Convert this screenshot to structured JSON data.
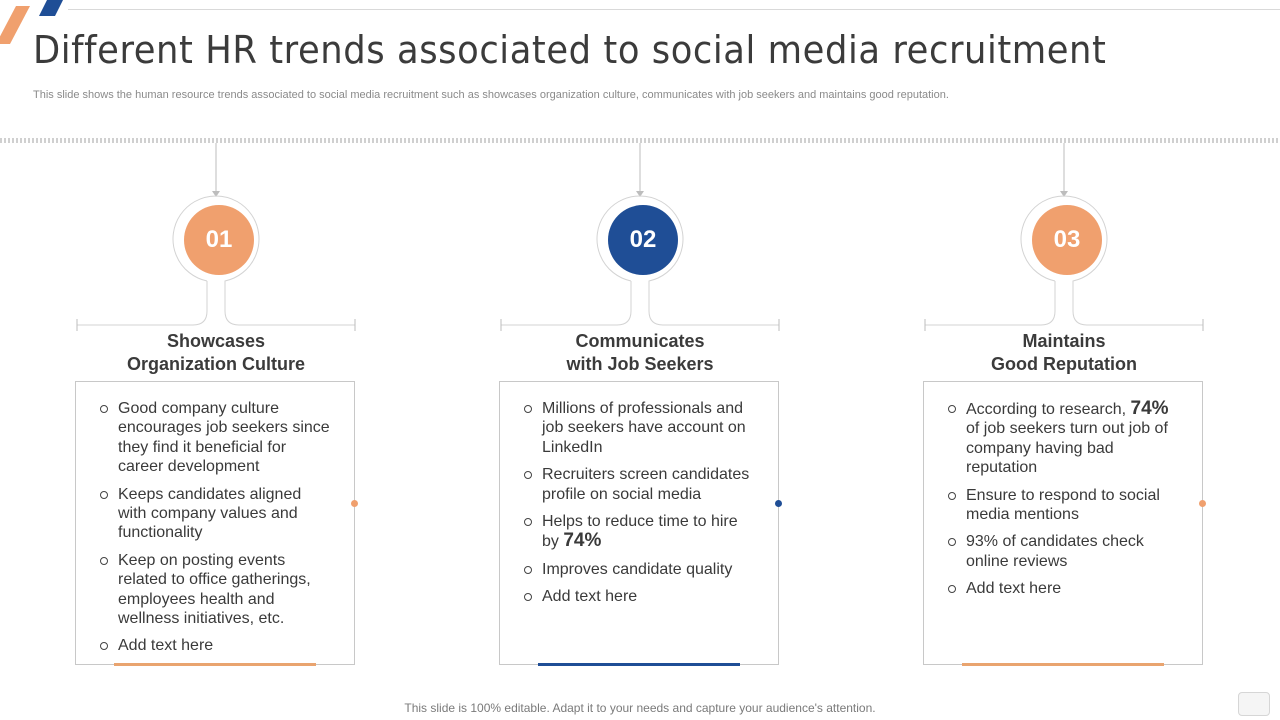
{
  "header": {
    "title": "Different HR trends associated to social media recruitment",
    "subtitle": "This slide shows the human resource trends associated to social media recruitment such as showcases organization culture, communicates with job seekers and maintains good reputation."
  },
  "colors": {
    "orange": "#f0a06e",
    "blue": "#1f4e96",
    "orange_bar": "#e9a46f"
  },
  "columns": [
    {
      "number": "01",
      "heading_line1": "Showcases",
      "heading_line2": "Organization Culture",
      "points": [
        "Good company culture encourages job seekers since they find it beneficial for career development",
        "Keeps candidates aligned with company values and functionality",
        "Keep on posting events related to office gatherings, employees health and wellness initiatives, etc.",
        "Add text here"
      ]
    },
    {
      "number": "02",
      "heading_line1": "Communicates",
      "heading_line2": "with Job Seekers",
      "points": [
        "Millions of professionals and job seekers have account on LinkedIn",
        "Recruiters screen candidates profile on social media",
        {
          "before": "Helps to reduce time to hire by ",
          "highlight": "74%",
          "after": ""
        },
        "Improves candidate quality",
        "Add text here"
      ]
    },
    {
      "number": "03",
      "heading_line1": "Maintains",
      "heading_line2": "Good Reputation",
      "points": [
        {
          "before": "According to research, ",
          "highlight": "74%",
          "after": " of job seekers turn out job of company having bad reputation"
        },
        "Ensure to respond to social media mentions",
        "93% of candidates check online reviews",
        "Add text here"
      ]
    }
  ],
  "footer": {
    "text": "This slide is 100% editable. Adapt it to your needs and capture your audience's attention."
  },
  "icons": {
    "corner": "diagonal-stripes-icon",
    "chat": "chat-bubble-icon"
  }
}
